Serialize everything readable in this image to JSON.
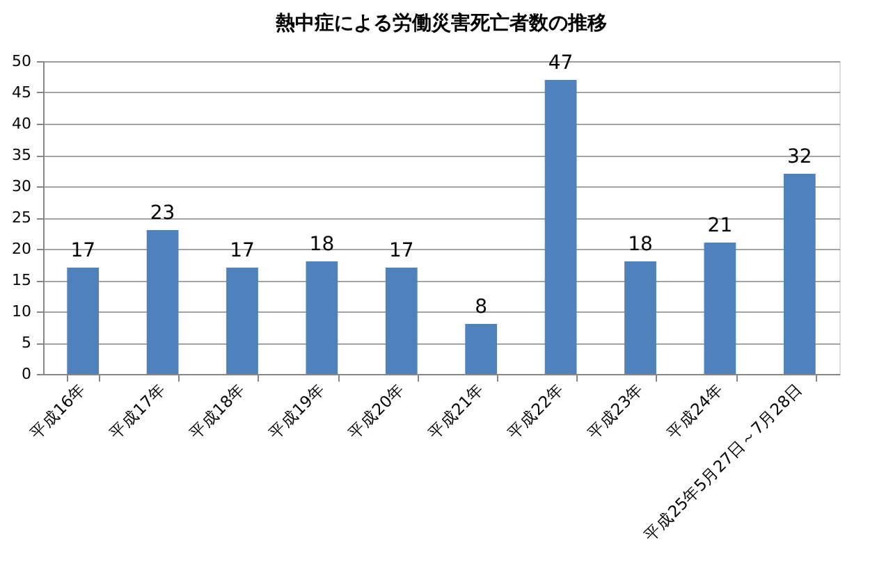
{
  "chart_data": {
    "type": "bar",
    "title": "熱中症による労働災害死亡者数の推移",
    "categories": [
      "平成16年",
      "平成17年",
      "平成18年",
      "平成19年",
      "平成20年",
      "平成21年",
      "平成22年",
      "平成23年",
      "平成24年",
      "平成25年5月27日～7月28日"
    ],
    "values": [
      17,
      23,
      17,
      18,
      17,
      8,
      47,
      18,
      21,
      32
    ],
    "color": "#4f81bd",
    "ylim": [
      0,
      50
    ],
    "yticks": [
      0,
      5,
      10,
      15,
      20,
      25,
      30,
      35,
      40,
      45,
      50
    ],
    "grid": "y",
    "data_labels": true
  }
}
